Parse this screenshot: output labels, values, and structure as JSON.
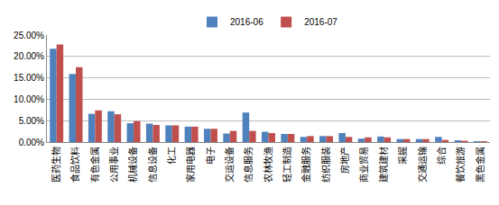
{
  "chart_data": {
    "type": "bar",
    "categories": [
      "医药生物",
      "食品饮料",
      "有色金属",
      "公用事业",
      "机械设备",
      "信息设备",
      "化工",
      "家用电器",
      "电子",
      "交运设备",
      "信息服务",
      "农林牧渔",
      "轻工制造",
      "金融服务",
      "纺织服装",
      "房地产",
      "商业贸易",
      "建筑建材",
      "采掘",
      "交通运输",
      "综合",
      "餐饮旅游",
      "黑色金属"
    ],
    "series": [
      {
        "name": "2016-06",
        "color": "#4f81bd",
        "values": [
          21.8,
          15.9,
          6.6,
          7.2,
          4.4,
          4.3,
          3.9,
          3.6,
          3.1,
          2.0,
          6.9,
          2.4,
          1.9,
          1.2,
          1.4,
          2.1,
          0.8,
          1.3,
          0.7,
          0.7,
          1.2,
          0.4,
          0.2
        ]
      },
      {
        "name": "2016-07",
        "color": "#c0504d",
        "values": [
          22.8,
          17.5,
          7.4,
          6.5,
          4.9,
          4.0,
          3.9,
          3.6,
          3.1,
          2.6,
          2.6,
          2.1,
          1.9,
          1.4,
          1.4,
          1.2,
          1.1,
          1.1,
          0.7,
          0.7,
          0.5,
          0.3,
          0.2
        ]
      }
    ],
    "ylim": [
      0,
      25
    ],
    "yticks": [
      {
        "value": 0,
        "label": "0.00%"
      },
      {
        "value": 5,
        "label": "5.00%"
      },
      {
        "value": 10,
        "label": "10.00%"
      },
      {
        "value": 15,
        "label": "15.00%"
      },
      {
        "value": 20,
        "label": "20.00%"
      },
      {
        "value": 25,
        "label": "25.00%"
      }
    ],
    "grid": true,
    "legend": "top"
  }
}
